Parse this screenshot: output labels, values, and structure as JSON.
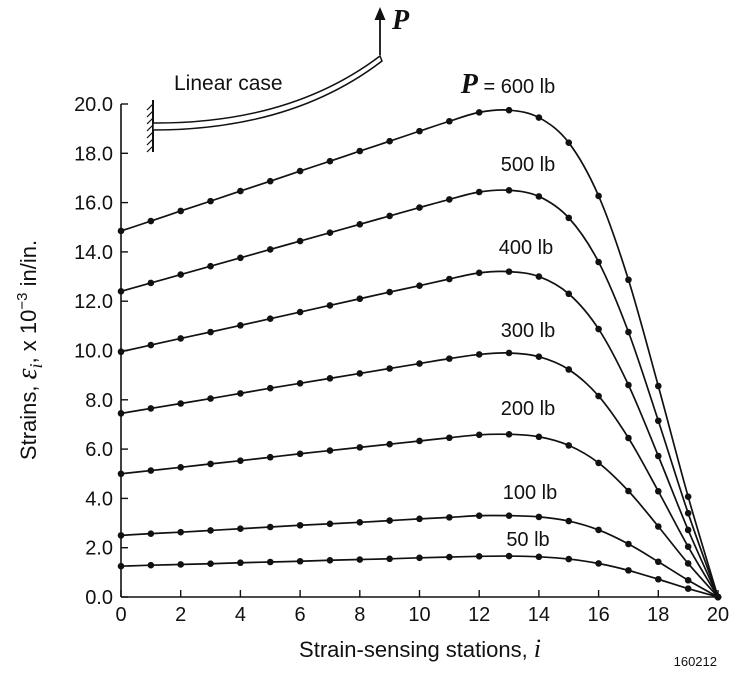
{
  "chart_data": {
    "type": "line",
    "xlabel_text": "Strain-sensing stations,",
    "xlabel_var": "i",
    "ylabel_prefix": "Strains,",
    "ylabel_symbol": "ε",
    "ylabel_subscript": "i",
    "ylabel_suffix": ", x 10",
    "ylabel_exponent": "−3",
    "ylabel_units": " in/in.",
    "xlim": [
      0,
      20
    ],
    "ylim": [
      0,
      20
    ],
    "x_ticks": [
      "0",
      "2",
      "4",
      "6",
      "8",
      "10",
      "12",
      "14",
      "16",
      "18",
      "20"
    ],
    "y_ticks": [
      "0.0",
      "2.0",
      "4.0",
      "6.0",
      "8.0",
      "10.0",
      "12.0",
      "14.0",
      "16.0",
      "18.0",
      "20.0"
    ],
    "grid": false,
    "stations": [
      0,
      1,
      2,
      3,
      4,
      5,
      6,
      7,
      8,
      9,
      10,
      11,
      12,
      13,
      14,
      15,
      16,
      17,
      18,
      19,
      20
    ],
    "series": [
      {
        "name": "50 lb",
        "values": [
          1.25,
          1.29,
          1.32,
          1.35,
          1.39,
          1.42,
          1.45,
          1.49,
          1.52,
          1.55,
          1.59,
          1.62,
          1.65,
          1.66,
          1.63,
          1.54,
          1.36,
          1.08,
          0.72,
          0.34,
          0.0
        ]
      },
      {
        "name": "100 lb",
        "values": [
          2.5,
          2.57,
          2.63,
          2.7,
          2.77,
          2.84,
          2.91,
          2.97,
          3.03,
          3.1,
          3.17,
          3.23,
          3.3,
          3.3,
          3.25,
          3.08,
          2.72,
          2.15,
          1.43,
          0.68,
          0.0
        ]
      },
      {
        "name": "200 lb",
        "values": [
          5.0,
          5.13,
          5.26,
          5.4,
          5.53,
          5.67,
          5.81,
          5.94,
          6.07,
          6.2,
          6.33,
          6.46,
          6.58,
          6.6,
          6.5,
          6.15,
          5.44,
          4.3,
          2.86,
          1.36,
          0.0
        ]
      },
      {
        "name": "300 lb",
        "values": [
          7.45,
          7.65,
          7.85,
          8.05,
          8.26,
          8.47,
          8.67,
          8.87,
          9.07,
          9.27,
          9.47,
          9.67,
          9.84,
          9.9,
          9.75,
          9.23,
          8.15,
          6.45,
          4.29,
          2.04,
          0.0
        ]
      },
      {
        "name": "400 lb",
        "values": [
          9.95,
          10.22,
          10.49,
          10.75,
          11.02,
          11.29,
          11.56,
          11.83,
          12.1,
          12.37,
          12.63,
          12.9,
          13.15,
          13.2,
          13.0,
          12.3,
          10.87,
          8.6,
          5.72,
          2.72,
          0.0
        ]
      },
      {
        "name": "500 lb",
        "values": [
          12.4,
          12.74,
          13.08,
          13.42,
          13.76,
          14.1,
          14.44,
          14.78,
          15.12,
          15.46,
          15.8,
          16.13,
          16.43,
          16.5,
          16.25,
          15.38,
          13.59,
          10.75,
          7.15,
          3.4,
          0.0
        ]
      },
      {
        "name": "600 lb",
        "values": [
          14.85,
          15.25,
          15.66,
          16.06,
          16.47,
          16.87,
          17.28,
          17.68,
          18.09,
          18.49,
          18.9,
          19.3,
          19.66,
          19.75,
          19.45,
          18.43,
          16.27,
          12.87,
          8.56,
          4.07,
          0.0
        ]
      }
    ],
    "series_label_prefix_var": "P",
    "series_label_prefix_eq": " = ",
    "inset": {
      "label": "Linear case",
      "load_label": "P"
    },
    "figure_number": "160212"
  }
}
